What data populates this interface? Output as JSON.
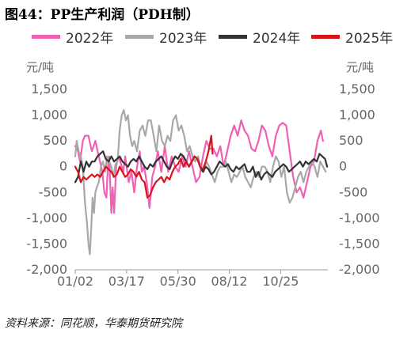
{
  "title": "图44：PP生产利润（PDH制）",
  "unit_left": "元/吨",
  "unit_right": "元/吨",
  "source": "资料来源：同花顺，华泰期货研究院",
  "chart_data": {
    "type": "line",
    "x_tick_labels": [
      "01/02",
      "03/17",
      "05/30",
      "08/12",
      "10/25"
    ],
    "x_tick_days": [
      1,
      75,
      149,
      223,
      297
    ],
    "xlim": [
      1,
      365
    ],
    "ylim": [
      -2000,
      1500
    ],
    "y_ticks": [
      1500,
      1000,
      500,
      0,
      -500,
      -1000,
      -1500,
      -2000
    ],
    "y_tick_labels": [
      "1,500",
      "1,000",
      "500",
      "0",
      "-500",
      "-1,000",
      "-1,500",
      "-2,000"
    ],
    "grid": false,
    "legend_position": "top",
    "series": [
      {
        "name": "2022年",
        "color": "#f060b4",
        "x": [
          1,
          5,
          8,
          12,
          15,
          20,
          25,
          30,
          35,
          40,
          43,
          46,
          48,
          50,
          53,
          55,
          57,
          60,
          63,
          66,
          70,
          73,
          78,
          82,
          86,
          90,
          94,
          97,
          100,
          104,
          108,
          112,
          116,
          120,
          125,
          130,
          135,
          140,
          145,
          150,
          155,
          160,
          165,
          170,
          175,
          180,
          185,
          190,
          195,
          200,
          205,
          210,
          215,
          220,
          225,
          230,
          235,
          240,
          245,
          250,
          255,
          260,
          265,
          270,
          275,
          280,
          285,
          290,
          295,
          300,
          305,
          310,
          315,
          320,
          325,
          330,
          335,
          340,
          345,
          350,
          355,
          358
        ],
        "y": [
          400,
          300,
          100,
          500,
          600,
          600,
          300,
          500,
          200,
          -100,
          -500,
          -600,
          0,
          200,
          -900,
          -400,
          -900,
          0,
          200,
          100,
          -100,
          200,
          -300,
          -100,
          -500,
          0,
          300,
          -100,
          0,
          -300,
          -800,
          -200,
          0,
          300,
          -100,
          400,
          -100,
          200,
          0,
          -100,
          200,
          0,
          300,
          0,
          -300,
          -200,
          200,
          500,
          350,
          350,
          200,
          400,
          0,
          300,
          600,
          800,
          600,
          900,
          700,
          600,
          350,
          300,
          500,
          800,
          700,
          400,
          200,
          600,
          800,
          850,
          800,
          300,
          -200,
          -500,
          -400,
          -600,
          -300,
          0,
          100,
          500,
          700,
          500
        ]
      },
      {
        "name": "2023年",
        "color": "#a8a8a8",
        "x": [
          1,
          3,
          6,
          9,
          12,
          15,
          18,
          20,
          22,
          24,
          26,
          28,
          30,
          32,
          35,
          38,
          41,
          44,
          47,
          50,
          53,
          56,
          59,
          62,
          65,
          68,
          71,
          74,
          77,
          80,
          83,
          86,
          90,
          94,
          98,
          102,
          106,
          110,
          114,
          118,
          122,
          126,
          130,
          134,
          138,
          142,
          146,
          150,
          154,
          158,
          162,
          166,
          170,
          174,
          178,
          182,
          186,
          190,
          194,
          198,
          202,
          206,
          210,
          214,
          218,
          222,
          226,
          230,
          234,
          238,
          242,
          246,
          250,
          254,
          258,
          262,
          266,
          270,
          274,
          278,
          282,
          286,
          290,
          294,
          298,
          302,
          306,
          310,
          314,
          318,
          322,
          326,
          330,
          334,
          338,
          342,
          346,
          350,
          354,
          358,
          362
        ],
        "y": [
          200,
          500,
          300,
          200,
          0,
          -700,
          -1100,
          -1500,
          -1700,
          -1200,
          -600,
          -900,
          -500,
          -400,
          -300,
          0,
          100,
          -100,
          200,
          100,
          0,
          -200,
          50,
          100,
          700,
          1000,
          1100,
          900,
          1000,
          600,
          400,
          500,
          300,
          700,
          800,
          600,
          900,
          900,
          600,
          300,
          800,
          500,
          400,
          600,
          500,
          900,
          1000,
          700,
          800,
          600,
          300,
          400,
          200,
          100,
          200,
          0,
          -100,
          100,
          0,
          -150,
          -300,
          -100,
          0,
          0,
          100,
          -100,
          -300,
          -150,
          -200,
          -100,
          0,
          -200,
          -300,
          -400,
          -200,
          -100,
          -200,
          0,
          0,
          -100,
          -300,
          0,
          200,
          100,
          -200,
          0,
          -500,
          -700,
          -600,
          -400,
          -200,
          -100,
          -300,
          -100,
          0,
          100,
          0,
          -200,
          100,
          0,
          -100
        ]
      },
      {
        "name": "2024年",
        "color": "#333333",
        "x": [
          1,
          5,
          9,
          13,
          17,
          21,
          25,
          29,
          33,
          37,
          41,
          45,
          49,
          53,
          57,
          61,
          65,
          69,
          73,
          77,
          81,
          85,
          89,
          93,
          97,
          101,
          105,
          109,
          113,
          117,
          121,
          125,
          129,
          133,
          137,
          141,
          145,
          149,
          153,
          157,
          161,
          165,
          169,
          173,
          177,
          181,
          185,
          189,
          193,
          197,
          201,
          205,
          209,
          213,
          217,
          221,
          225,
          229,
          233,
          237,
          241,
          245,
          249,
          253,
          257,
          261,
          265,
          269,
          273,
          277,
          281,
          285,
          289,
          293,
          297,
          301,
          305,
          309,
          313,
          317,
          321,
          325,
          329,
          333,
          337,
          341,
          345,
          349,
          353,
          357,
          361,
          364
        ],
        "y": [
          -300,
          -200,
          100,
          -100,
          100,
          0,
          100,
          100,
          200,
          250,
          300,
          150,
          100,
          200,
          100,
          150,
          200,
          100,
          50,
          0,
          100,
          150,
          100,
          200,
          100,
          0,
          -50,
          50,
          0,
          100,
          150,
          200,
          100,
          0,
          -50,
          100,
          200,
          150,
          250,
          200,
          100,
          0,
          100,
          200,
          150,
          0,
          -100,
          0,
          -50,
          -150,
          -100,
          0,
          100,
          50,
          0,
          50,
          -50,
          -100,
          0,
          -50,
          0,
          50,
          -100,
          -100,
          0,
          -200,
          -100,
          -250,
          -150,
          -100,
          -150,
          -200,
          -100,
          -50,
          0,
          50,
          0,
          -100,
          -50,
          0,
          50,
          100,
          0,
          100,
          50,
          100,
          150,
          100,
          250,
          200,
          150,
          0
        ]
      },
      {
        "name": "2025年",
        "color": "#d9131a",
        "x": [
          1,
          5,
          9,
          13,
          17,
          21,
          25,
          29,
          33,
          37,
          41,
          45,
          49,
          53,
          57,
          61,
          65,
          69,
          73,
          77,
          81,
          85,
          89,
          93,
          97,
          101,
          105,
          109,
          113,
          117,
          121,
          125,
          129,
          133,
          137,
          141,
          145,
          149,
          153,
          157,
          161,
          165,
          169,
          173,
          177,
          181,
          185,
          189,
          193,
          197,
          199
        ],
        "y": [
          0,
          -100,
          -300,
          -200,
          -250,
          -200,
          -150,
          -200,
          -150,
          -200,
          -100,
          0,
          -50,
          -100,
          -200,
          -150,
          0,
          -100,
          -200,
          -150,
          -50,
          -100,
          -200,
          -100,
          -250,
          -300,
          -600,
          -550,
          -400,
          -300,
          -250,
          -200,
          -300,
          -200,
          -250,
          -100,
          0,
          50,
          150,
          0,
          100,
          0,
          100,
          200,
          150,
          0,
          -50,
          100,
          300,
          600,
          250
        ]
      }
    ]
  }
}
